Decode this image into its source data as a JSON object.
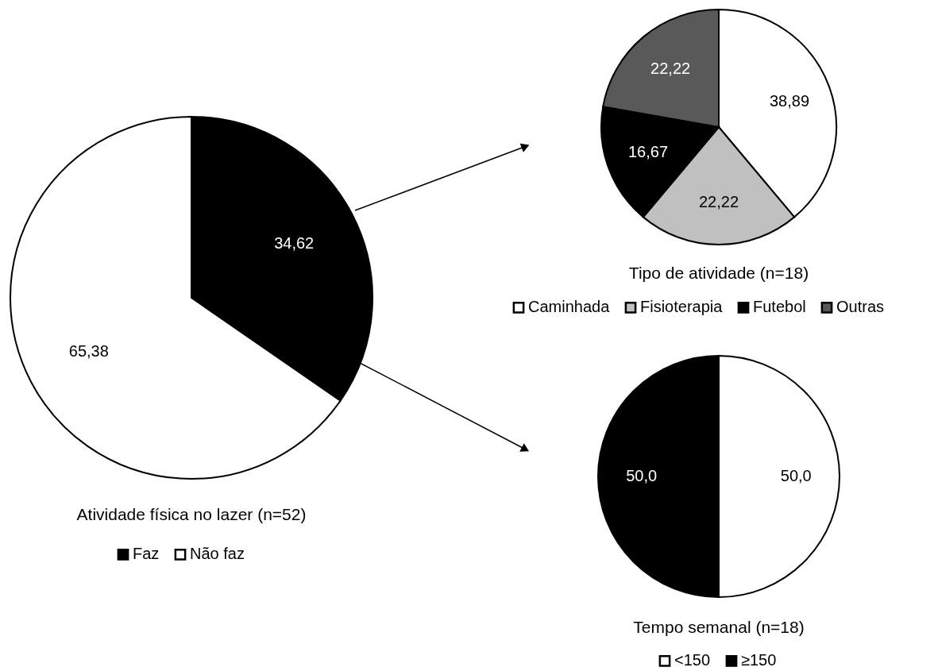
{
  "chart_data": [
    {
      "type": "pie",
      "title": "Atividade física no lazer (n=52)",
      "categories": [
        "Faz",
        "Não faz"
      ],
      "values": [
        34.62,
        65.38
      ],
      "colors": [
        "#000000",
        "#ffffff"
      ],
      "value_labels": [
        "34,62",
        "65,38"
      ],
      "legend": "bottom"
    },
    {
      "type": "pie",
      "title": "Tipo de atividade (n=18)",
      "categories": [
        "Caminhada",
        "Fisioterapia",
        "Futebol",
        "Outras"
      ],
      "values": [
        38.89,
        22.22,
        16.67,
        22.22
      ],
      "colors": [
        "#ffffff",
        "#c0c0c0",
        "#000000",
        "#595959"
      ],
      "value_labels": [
        "38,89",
        "22,22",
        "16,67",
        "22,22"
      ],
      "legend": "bottom"
    },
    {
      "type": "pie",
      "title": "Tempo semanal (n=18)",
      "categories": [
        "<150",
        "≥150"
      ],
      "values": [
        50.0,
        50.0
      ],
      "colors": [
        "#ffffff",
        "#000000"
      ],
      "value_labels": [
        "50,0",
        "50,0"
      ],
      "legend": "bottom"
    }
  ]
}
